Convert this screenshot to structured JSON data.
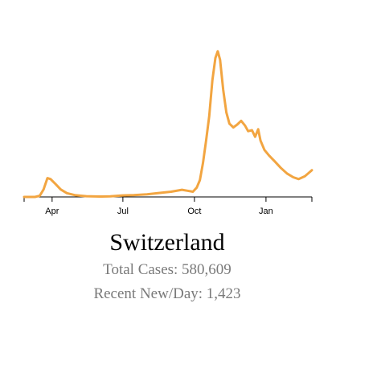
{
  "chart_data": {
    "type": "line",
    "title": "",
    "xlabel": "",
    "ylabel": "",
    "x_domain": [
      "2020-02-25",
      "2021-03-01"
    ],
    "ticks": [
      {
        "date": "2020-04-01",
        "label": "Apr"
      },
      {
        "date": "2020-07-01",
        "label": "Jul"
      },
      {
        "date": "2020-10-01",
        "label": "Oct"
      },
      {
        "date": "2021-01-01",
        "label": "Jan"
      }
    ],
    "ylim": [
      0,
      8000
    ],
    "series": [
      {
        "color": "#f2a541",
        "points": [
          [
            "2020-02-25",
            0
          ],
          [
            "2020-03-10",
            0
          ],
          [
            "2020-03-16",
            60
          ],
          [
            "2020-03-21",
            400
          ],
          [
            "2020-03-26",
            1000
          ],
          [
            "2020-03-30",
            950
          ],
          [
            "2020-04-05",
            700
          ],
          [
            "2020-04-12",
            400
          ],
          [
            "2020-04-20",
            200
          ],
          [
            "2020-05-01",
            90
          ],
          [
            "2020-05-15",
            40
          ],
          [
            "2020-06-01",
            20
          ],
          [
            "2020-06-15",
            30
          ],
          [
            "2020-07-01",
            80
          ],
          [
            "2020-07-15",
            100
          ],
          [
            "2020-08-01",
            140
          ],
          [
            "2020-08-15",
            200
          ],
          [
            "2020-09-01",
            280
          ],
          [
            "2020-09-15",
            380
          ],
          [
            "2020-09-22",
            330
          ],
          [
            "2020-09-29",
            280
          ],
          [
            "2020-10-04",
            500
          ],
          [
            "2020-10-08",
            900
          ],
          [
            "2020-10-12",
            1800
          ],
          [
            "2020-10-16",
            3000
          ],
          [
            "2020-10-20",
            4300
          ],
          [
            "2020-10-24",
            6200
          ],
          [
            "2020-10-28",
            7400
          ],
          [
            "2020-10-31",
            7750
          ],
          [
            "2020-11-03",
            7300
          ],
          [
            "2020-11-07",
            5700
          ],
          [
            "2020-11-11",
            4500
          ],
          [
            "2020-11-15",
            3900
          ],
          [
            "2020-11-20",
            3700
          ],
          [
            "2020-11-25",
            3850
          ],
          [
            "2020-11-30",
            4050
          ],
          [
            "2020-12-05",
            3800
          ],
          [
            "2020-12-09",
            3500
          ],
          [
            "2020-12-14",
            3550
          ],
          [
            "2020-12-18",
            3200
          ],
          [
            "2020-12-22",
            3600
          ],
          [
            "2020-12-25",
            3000
          ],
          [
            "2020-12-30",
            2500
          ],
          [
            "2021-01-05",
            2200
          ],
          [
            "2021-01-12",
            1900
          ],
          [
            "2021-01-20",
            1550
          ],
          [
            "2021-01-28",
            1250
          ],
          [
            "2021-02-05",
            1050
          ],
          [
            "2021-02-12",
            950
          ],
          [
            "2021-02-20",
            1100
          ],
          [
            "2021-03-01",
            1423
          ]
        ]
      }
    ]
  },
  "country": "Switzerland",
  "stats": {
    "total_cases": "Total Cases: 580,609",
    "recent_new_per_day": "Recent New/Day: 1,423"
  }
}
